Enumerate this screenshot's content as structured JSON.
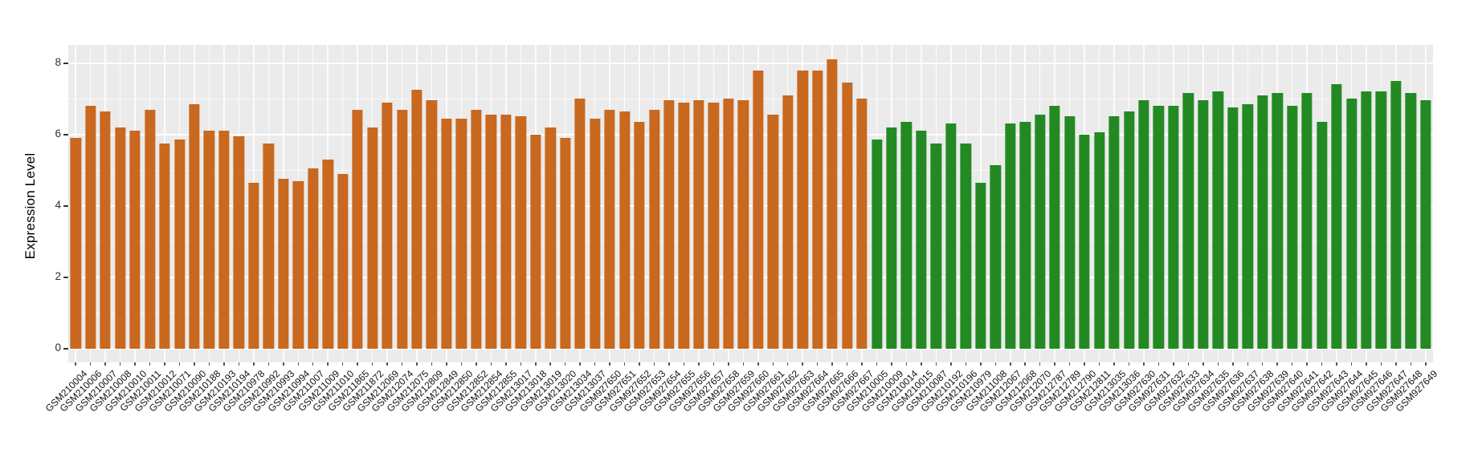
{
  "chart_data": {
    "type": "bar",
    "title": "",
    "xlabel": "",
    "ylabel": "Expression Level",
    "yticks": [
      0,
      2,
      4,
      6,
      8
    ],
    "minor_yticks": [
      1,
      3,
      5,
      7
    ],
    "ylim": [
      -0.38,
      8.5
    ],
    "grid": "on",
    "legend_position": "none",
    "panel_background": "#EBEBEB",
    "gridline_color": "#FFFFFF",
    "group_split_index": 54,
    "group_colors": {
      "group1": "#C9681F",
      "group2": "#238A23"
    },
    "categories": [
      "GSM210004",
      "GSM210006",
      "GSM210007",
      "GSM210008",
      "GSM210010",
      "GSM210011",
      "GSM210012",
      "GSM210071",
      "GSM210090",
      "GSM210188",
      "GSM210193",
      "GSM210194",
      "GSM210978",
      "GSM210992",
      "GSM210993",
      "GSM210994",
      "GSM211007",
      "GSM211009",
      "GSM211010",
      "GSM211865",
      "GSM211872",
      "GSM212069",
      "GSM212074",
      "GSM212075",
      "GSM212809",
      "GSM212849",
      "GSM212850",
      "GSM212852",
      "GSM212854",
      "GSM212855",
      "GSM213017",
      "GSM213018",
      "GSM213019",
      "GSM213020",
      "GSM213034",
      "GSM213037",
      "GSM927650",
      "GSM927651",
      "GSM927652",
      "GSM927653",
      "GSM927654",
      "GSM927655",
      "GSM927656",
      "GSM927657",
      "GSM927658",
      "GSM927659",
      "GSM927660",
      "GSM927661",
      "GSM927662",
      "GSM927663",
      "GSM927664",
      "GSM927665",
      "GSM927666",
      "GSM927667",
      "GSM210005",
      "GSM210009",
      "GSM210014",
      "GSM210015",
      "GSM210087",
      "GSM210192",
      "GSM210196",
      "GSM210979",
      "GSM211008",
      "GSM212067",
      "GSM212068",
      "GSM212070",
      "GSM212787",
      "GSM212789",
      "GSM212790",
      "GSM212811",
      "GSM213035",
      "GSM213036",
      "GSM927630",
      "GSM927631",
      "GSM927632",
      "GSM927633",
      "GSM927634",
      "GSM927635",
      "GSM927636",
      "GSM927637",
      "GSM927638",
      "GSM927639",
      "GSM927640",
      "GSM927641",
      "GSM927642",
      "GSM927643",
      "GSM927644",
      "GSM927645",
      "GSM927646",
      "GSM927647",
      "GSM927648",
      "GSM927649"
    ],
    "values": [
      5.9,
      6.8,
      6.65,
      6.2,
      6.1,
      6.7,
      5.75,
      5.85,
      6.85,
      6.1,
      6.1,
      5.95,
      4.65,
      5.75,
      4.75,
      4.7,
      5.05,
      5.3,
      4.9,
      6.7,
      6.2,
      6.9,
      6.7,
      7.25,
      6.95,
      6.45,
      6.45,
      6.7,
      6.55,
      6.55,
      6.5,
      6.0,
      6.2,
      5.9,
      7.0,
      6.45,
      6.7,
      6.65,
      6.35,
      6.7,
      6.95,
      6.9,
      6.95,
      6.9,
      7.0,
      6.95,
      7.8,
      6.55,
      7.1,
      7.8,
      7.8,
      8.1,
      7.45,
      7.0,
      5.85,
      6.2,
      6.35,
      6.1,
      5.75,
      6.3,
      5.75,
      4.65,
      5.15,
      6.3,
      6.35,
      6.55,
      6.8,
      6.5,
      6.0,
      6.05,
      6.5,
      6.65,
      6.95,
      6.8,
      6.8,
      7.15,
      6.95,
      7.2,
      6.75,
      6.85,
      7.1,
      7.15,
      6.8,
      7.15,
      6.35,
      7.4,
      7.0,
      7.2,
      7.2,
      7.5,
      7.15,
      6.95
    ]
  }
}
